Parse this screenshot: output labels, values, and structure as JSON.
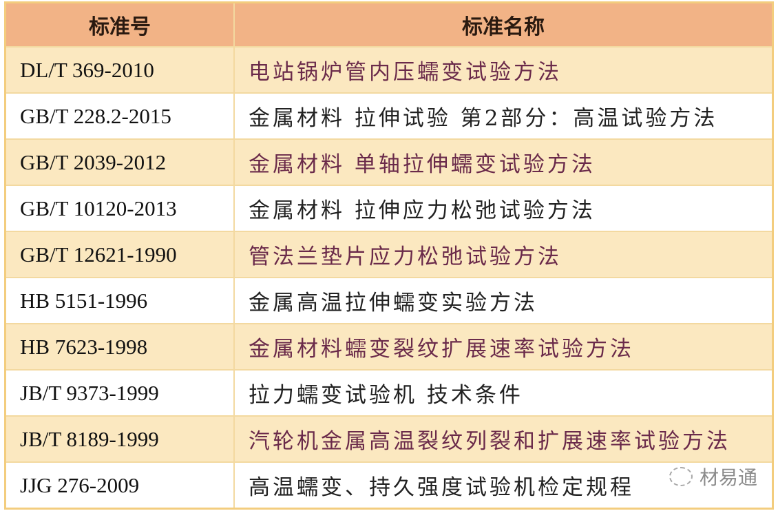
{
  "header": {
    "col1": "标准号",
    "col2": "标准名称"
  },
  "rows": [
    {
      "code": "DL/T 369-2010",
      "name": "电站锅炉管内压蠕变试验方法"
    },
    {
      "code": "GB/T 228.2-2015",
      "name": "金属材料 拉伸试验 第2部分：高温试验方法"
    },
    {
      "code": "GB/T 2039-2012",
      "name": "金属材料 单轴拉伸蠕变试验方法"
    },
    {
      "code": "GB/T 10120-2013",
      "name": "金属材料 拉伸应力松弛试验方法"
    },
    {
      "code": "GB/T 12621-1990",
      "name": "管法兰垫片应力松弛试验方法"
    },
    {
      "code": "HB 5151-1996",
      "name": "金属高温拉伸蠕变实验方法"
    },
    {
      "code": "HB 7623-1998",
      "name": "金属材料蠕变裂纹扩展速率试验方法"
    },
    {
      "code": "JB/T 9373-1999",
      "name": "拉力蠕变试验机 技术条件"
    },
    {
      "code": "JB/T 8189-1999",
      "name": "汽轮机金属高温裂纹列裂和扩展速率试验方法"
    },
    {
      "code": "JJG 276-2009",
      "name": "高温蠕变、持久强度试验机检定规程"
    }
  ],
  "watermark": {
    "text": "材易通",
    "icon": "wechat-icon"
  },
  "colors": {
    "header_bg": "#f2b386",
    "highlight_row_bg": "#fbe8c0",
    "border": "#f3cd7e",
    "highlight_text": "#6a2a4a"
  }
}
